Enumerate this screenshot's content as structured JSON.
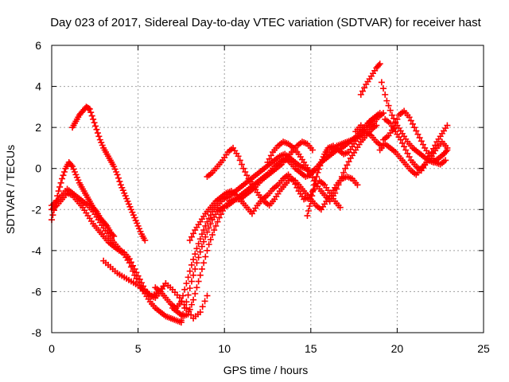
{
  "chart_data": {
    "type": "scatter",
    "title": "Day 023 of 2017, Sidereal Day-to-day VTEC variation (SDTVAR) for receiver hast",
    "xlabel": "GPS time / hours",
    "ylabel": "SDTVAR / TECUs",
    "xlim": [
      0,
      25
    ],
    "ylim": [
      -8,
      6
    ],
    "x_ticks": [
      0,
      5,
      10,
      15,
      20,
      25
    ],
    "y_ticks": [
      -8,
      -6,
      -4,
      -2,
      0,
      2,
      4,
      6
    ],
    "grid": true,
    "marker": "+",
    "color": "#ff0000",
    "series": [
      {
        "x": [
          1.2,
          1.4,
          1.6,
          1.8,
          2.0,
          2.2,
          2.4,
          2.6,
          2.8,
          3.0,
          3.2,
          3.4,
          3.6,
          3.8,
          4.0,
          4.2,
          4.4,
          4.6,
          4.8,
          5.0,
          5.2,
          5.4
        ],
        "y": [
          2.0,
          2.3,
          2.6,
          2.8,
          3.0,
          2.9,
          2.4,
          1.9,
          1.4,
          1.0,
          0.7,
          0.4,
          0.1,
          -0.3,
          -0.8,
          -1.2,
          -1.6,
          -2.0,
          -2.4,
          -2.8,
          -3.2,
          -3.5
        ]
      },
      {
        "x": [
          0.0,
          0.2,
          0.4,
          0.6,
          0.8,
          1.0,
          1.2,
          1.4,
          1.6,
          1.8,
          2.0,
          2.2,
          2.4,
          2.6,
          2.8,
          3.0,
          3.2,
          3.4,
          3.6
        ],
        "y": [
          -2.5,
          -1.8,
          -1.1,
          -0.5,
          0.0,
          0.3,
          0.1,
          -0.3,
          -0.7,
          -1.0,
          -1.3,
          -1.6,
          -1.9,
          -2.1,
          -2.4,
          -2.6,
          -2.8,
          -3.1,
          -3.3
        ]
      },
      {
        "x": [
          0.0,
          0.3,
          0.6,
          0.9,
          1.2,
          1.5,
          1.8,
          2.1,
          2.4,
          2.7,
          3.0,
          3.3,
          3.6,
          3.9,
          4.2,
          4.5,
          4.8,
          5.1,
          5.4,
          5.7,
          6.0,
          6.3,
          6.6,
          6.9,
          7.2,
          7.5
        ],
        "y": [
          -1.8,
          -1.6,
          -1.3,
          -1.0,
          -1.2,
          -1.4,
          -1.6,
          -1.8,
          -2.1,
          -2.5,
          -2.9,
          -3.3,
          -3.6,
          -3.9,
          -4.2,
          -4.6,
          -5.2,
          -5.7,
          -6.1,
          -6.5,
          -6.8,
          -7.0,
          -7.2,
          -7.3,
          -7.4,
          -7.5
        ]
      },
      {
        "x": [
          0.0,
          0.3,
          0.6,
          0.9,
          1.2,
          1.5,
          1.8,
          2.1,
          2.4,
          2.7,
          3.0,
          3.3,
          3.6,
          3.9,
          4.2,
          4.5,
          4.8,
          5.1,
          5.4,
          5.7,
          6.0,
          6.3,
          6.6
        ],
        "y": [
          -2.0,
          -1.8,
          -1.5,
          -1.2,
          -1.3,
          -1.6,
          -1.9,
          -2.3,
          -2.7,
          -3.0,
          -3.3,
          -3.6,
          -3.8,
          -4.0,
          -4.1,
          -4.4,
          -4.9,
          -5.4,
          -5.9,
          -6.2,
          -6.3,
          -6.0,
          -5.6
        ]
      },
      {
        "x": [
          3.0,
          3.4,
          3.8,
          4.2,
          4.6,
          5.0,
          5.4,
          5.8,
          6.2,
          6.6,
          7.0,
          7.4,
          7.8,
          8.2,
          8.6,
          9.0
        ],
        "y": [
          -4.5,
          -4.8,
          -5.1,
          -5.3,
          -5.5,
          -5.7,
          -6.0,
          -6.2,
          -6.0,
          -5.6,
          -5.9,
          -6.3,
          -6.8,
          -7.3,
          -7.0,
          -6.2
        ]
      },
      {
        "x": [
          6.0,
          6.3,
          6.6,
          6.9,
          7.2,
          7.5,
          7.8,
          8.1,
          8.4,
          8.7,
          9.0,
          9.3,
          9.6,
          9.9,
          10.2,
          10.5,
          10.8,
          11.1,
          11.4,
          11.7,
          12.0,
          12.3,
          12.6,
          12.9,
          13.2,
          13.5,
          13.8,
          14.1,
          14.4,
          14.7,
          15.0,
          15.3,
          15.6,
          15.9,
          16.2,
          16.5,
          16.8,
          17.1,
          17.4,
          17.7,
          18.0,
          18.3,
          18.6,
          18.9
        ],
        "y": [
          -5.8,
          -6.0,
          -6.3,
          -6.6,
          -6.8,
          -6.5,
          -5.6,
          -4.7,
          -3.9,
          -3.2,
          -2.6,
          -2.1,
          -1.8,
          -1.5,
          -1.4,
          -1.2,
          -1.0,
          -0.8,
          -0.6,
          -0.4,
          -0.2,
          0.0,
          0.2,
          0.4,
          0.6,
          0.7,
          0.5,
          0.3,
          0.1,
          0.0,
          -0.2,
          0.0,
          0.3,
          0.6,
          0.9,
          1.1,
          1.2,
          1.3,
          1.4,
          1.6,
          1.9,
          2.2,
          2.4,
          2.6
        ]
      },
      {
        "x": [
          7.0,
          7.3,
          7.6,
          7.9,
          8.2,
          8.5,
          8.8,
          9.1,
          9.4,
          9.7,
          10.0,
          10.3,
          10.6,
          10.9,
          11.2,
          11.5,
          11.8,
          12.1,
          12.4,
          12.7,
          13.0,
          13.3,
          13.6,
          13.9,
          14.2,
          14.5,
          14.8,
          15.1
        ],
        "y": [
          -6.8,
          -7.0,
          -7.2,
          -7.1,
          -6.4,
          -5.5,
          -4.6,
          -3.7,
          -3.0,
          -2.4,
          -1.9,
          -1.6,
          -1.5,
          -1.5,
          -1.3,
          -1.1,
          -0.9,
          -0.6,
          -0.4,
          -0.2,
          0.0,
          0.2,
          0.5,
          0.8,
          1.1,
          1.3,
          1.2,
          0.9
        ]
      },
      {
        "x": [
          7.5,
          7.8,
          8.1,
          8.4,
          8.7,
          9.0,
          9.3,
          9.6,
          9.9,
          10.2,
          10.5,
          10.8,
          11.1,
          11.4,
          11.7,
          12.0,
          12.3,
          12.6,
          12.9,
          13.2,
          13.5,
          13.8,
          14.1,
          14.4,
          14.7,
          15.0,
          15.3,
          15.6,
          15.9,
          16.2,
          16.5,
          16.8,
          17.1,
          17.4,
          17.7,
          18.0,
          18.3,
          18.6,
          18.9,
          19.2
        ],
        "y": [
          -7.4,
          -6.5,
          -5.5,
          -4.6,
          -3.8,
          -3.1,
          -2.5,
          -2.1,
          -1.9,
          -1.8,
          -1.6,
          -1.4,
          -1.2,
          -1.0,
          -0.8,
          -0.6,
          -0.4,
          -0.2,
          0.1,
          0.3,
          0.5,
          0.3,
          0.0,
          -0.2,
          -0.4,
          -0.3,
          0.0,
          0.3,
          0.5,
          0.7,
          0.9,
          1.0,
          1.2,
          1.4,
          1.5,
          1.7,
          2.0,
          2.2,
          2.5,
          2.7
        ]
      },
      {
        "x": [
          8.0,
          8.3,
          8.6,
          8.9,
          9.2,
          9.5,
          9.8,
          10.1,
          10.4,
          10.7,
          11.0,
          11.3,
          11.6,
          11.9,
          12.2,
          12.5,
          12.8,
          13.1,
          13.4,
          13.7,
          14.0,
          14.3,
          14.6,
          14.9,
          15.2,
          15.5,
          15.8,
          16.1,
          16.4,
          16.7
        ],
        "y": [
          -3.5,
          -3.0,
          -2.6,
          -2.2,
          -1.9,
          -1.6,
          -1.4,
          -1.2,
          -1.1,
          -1.3,
          -1.6,
          -1.9,
          -2.2,
          -1.8,
          -1.5,
          -1.3,
          -1.0,
          -0.8,
          -0.5,
          -0.3,
          -0.6,
          -1.1,
          -1.5,
          -1.4,
          -1.0,
          -0.6,
          -0.8,
          -1.2,
          -1.6,
          -1.9
        ]
      },
      {
        "x": [
          9.0,
          9.3,
          9.6,
          9.9,
          10.2,
          10.5,
          10.8,
          11.1,
          11.4,
          11.7,
          12.0,
          12.3,
          12.6,
          12.9,
          13.2,
          13.5,
          13.8,
          14.1,
          14.4,
          14.7,
          15.0,
          15.3,
          15.6,
          15.9,
          16.2,
          16.5,
          16.8,
          17.1,
          17.4,
          17.7
        ],
        "y": [
          -0.4,
          -0.2,
          0.1,
          0.4,
          0.8,
          1.0,
          0.6,
          0.0,
          -0.5,
          -0.9,
          -1.3,
          -1.6,
          -1.8,
          -1.5,
          -1.1,
          -0.8,
          -0.5,
          -0.6,
          -0.9,
          -1.2,
          -1.5,
          -1.8,
          -2.0,
          -1.6,
          -1.2,
          -0.8,
          -0.5,
          -0.4,
          -0.5,
          -0.8
        ]
      },
      {
        "x": [
          12.5,
          12.8,
          13.1,
          13.4,
          13.7,
          14.0,
          14.3,
          14.6,
          14.9,
          15.2,
          15.5,
          15.8,
          16.1,
          16.4,
          16.7,
          17.0,
          17.3,
          17.6,
          17.9,
          18.2,
          18.5,
          18.8
        ],
        "y": [
          0.3,
          0.8,
          1.1,
          1.3,
          1.2,
          1.0,
          0.7,
          0.3,
          -0.1,
          -0.6,
          -1.0,
          -1.3,
          -1.6,
          -1.2,
          -0.6,
          0.0,
          0.5,
          0.9,
          1.3,
          1.6,
          1.9,
          2.1
        ]
      },
      {
        "x": [
          14.8,
          15.0,
          15.2,
          15.4,
          15.6,
          15.8,
          16.0,
          16.3,
          16.6,
          16.9,
          17.2,
          17.5,
          17.8,
          18.1,
          18.4,
          18.7,
          19.0
        ],
        "y": [
          -2.3,
          -1.6,
          -0.8,
          -0.2,
          0.3,
          0.7,
          1.0,
          1.1,
          0.9,
          0.7,
          0.8,
          1.2,
          1.6,
          2.0,
          2.3,
          2.5,
          2.7
        ]
      },
      {
        "x": [
          17.6,
          17.9,
          18.2,
          18.5,
          18.8,
          19.1
        ],
        "y": [
          1.8,
          2.1,
          1.8,
          1.6,
          1.3,
          1.1
        ]
      },
      {
        "x": [
          17.9,
          18.2,
          18.5,
          18.8,
          19.0
        ],
        "y": [
          3.6,
          4.1,
          4.5,
          4.9,
          5.1
        ]
      },
      {
        "x": [
          19.1,
          19.4,
          19.7,
          20.0,
          20.3,
          20.6,
          20.9,
          21.2,
          21.5,
          21.8,
          22.1,
          22.4,
          22.7,
          22.9
        ],
        "y": [
          4.2,
          3.3,
          2.6,
          2.1,
          1.7,
          1.3,
          1.0,
          0.8,
          0.6,
          0.4,
          0.3,
          0.5,
          0.7,
          0.9
        ]
      },
      {
        "x": [
          19.2,
          19.5,
          19.8,
          20.1,
          20.4,
          20.7,
          21.0,
          21.3,
          21.6,
          21.9,
          22.2,
          22.5,
          22.8
        ],
        "y": [
          1.4,
          1.6,
          2.0,
          2.6,
          2.8,
          2.5,
          2.0,
          1.5,
          1.0,
          0.6,
          0.3,
          0.2,
          0.4
        ]
      },
      {
        "x": [
          19.3,
          19.6,
          19.9,
          20.2,
          20.5,
          20.8,
          21.1,
          21.4,
          21.7,
          22.0,
          22.3,
          22.6,
          22.9
        ],
        "y": [
          2.4,
          2.2,
          1.8,
          1.4,
          0.9,
          0.4,
          0.1,
          -0.1,
          0.3,
          0.8,
          1.3,
          1.7,
          2.1
        ]
      },
      {
        "x": [
          19.0,
          19.3,
          19.6,
          19.9,
          20.2,
          20.5,
          20.8,
          21.1,
          21.4,
          21.7,
          22.0,
          22.3,
          22.6,
          22.9
        ],
        "y": [
          0.9,
          1.2,
          1.0,
          0.8,
          0.5,
          0.2,
          -0.1,
          -0.3,
          0.0,
          0.3,
          0.6,
          1.0,
          1.3,
          1.0
        ]
      }
    ]
  }
}
